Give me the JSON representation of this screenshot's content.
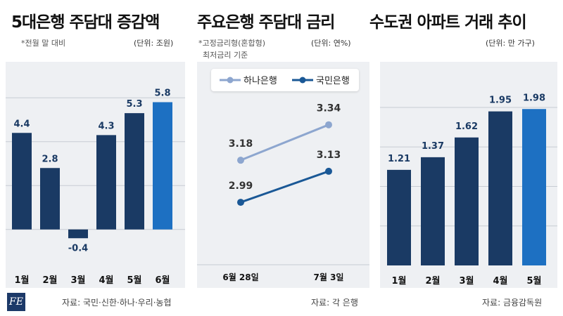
{
  "colors": {
    "dark_bar": "#1a3a64",
    "highlight_bar": "#1d70c2",
    "hana_line": "#8da6cf",
    "kookmin_line": "#1a5896",
    "panel_bg": "#eef0f3"
  },
  "panel1": {
    "title": "5대은행 주담대 증감액",
    "note": "*전월 말 대비",
    "unit": "(단위: 조원)",
    "source": "자료: 국민·신한·하나·우리·농협"
  },
  "panel2": {
    "title": "주요은행 주담대 금리",
    "note_line1": "*고정금리형(혼합형)",
    "note_line2": "최저금리 기준",
    "unit": "(단위: 연%)",
    "source": "자료: 각 은행"
  },
  "panel3": {
    "title": "수도권 아파트 거래 추이",
    "unit": "(단위: 만 가구)",
    "source": "자료: 금융감독원"
  },
  "logo_text": "FE",
  "chart_data": [
    {
      "type": "bar",
      "title": "5대은행 주담대 증감액",
      "categories": [
        "1월",
        "2월",
        "3월",
        "4월",
        "5월",
        "6월"
      ],
      "values": [
        4.4,
        2.8,
        -0.4,
        4.3,
        5.3,
        5.8
      ],
      "value_labels": [
        "4.4",
        "2.8",
        "-0.4",
        "4.3",
        "5.3",
        "5.8"
      ],
      "highlight_index": 5,
      "ylim": [
        -1,
        7
      ]
    },
    {
      "type": "line",
      "title": "주요은행 주담대 금리",
      "x": [
        "6월 28일",
        "7월 3일"
      ],
      "series": [
        {
          "name": "하나은행",
          "values": [
            3.18,
            3.34
          ],
          "labels": [
            "3.18",
            "3.34"
          ]
        },
        {
          "name": "국민은행",
          "values": [
            2.99,
            3.13
          ],
          "labels": [
            "2.99",
            "3.13"
          ]
        }
      ],
      "legend": "top"
    },
    {
      "type": "bar",
      "title": "수도권 아파트 거래 추이",
      "categories": [
        "1월",
        "2월",
        "3월",
        "4월",
        "5월"
      ],
      "values": [
        1.21,
        1.37,
        1.62,
        1.95,
        1.98
      ],
      "value_labels": [
        "1.21",
        "1.37",
        "1.62",
        "1.95",
        "1.98"
      ],
      "highlight_index": 4,
      "ylim": [
        0,
        2.4
      ]
    }
  ]
}
